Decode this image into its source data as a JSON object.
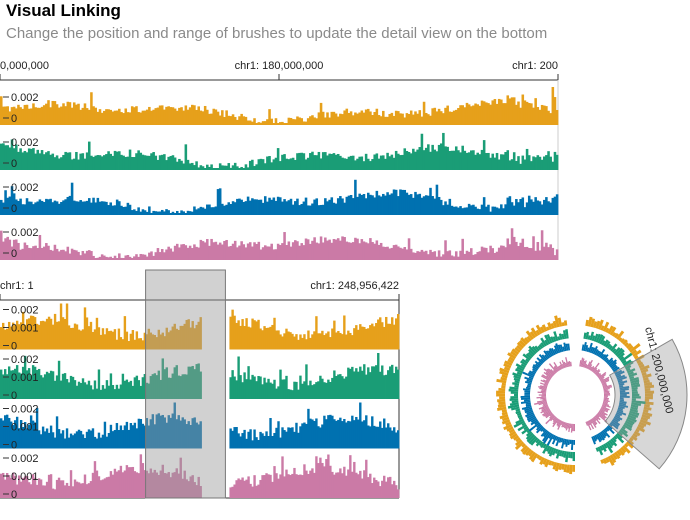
{
  "header": {
    "title": "Visual Linking",
    "subtitle": "Change the position and range of brushes to update the detail view on the bottom"
  },
  "chart_data": [
    {
      "type": "area",
      "name": "detail-view",
      "x_ticks": [
        "0,000,000",
        "chr1: 180,000,000",
        "chr1: 200"
      ],
      "series": [
        {
          "color": "#E6A01B",
          "y_ticks": [
            "0.002",
            "0"
          ]
        },
        {
          "color": "#1A9D76",
          "y_ticks": [
            "0.002",
            "0"
          ]
        },
        {
          "color": "#0071B0",
          "y_ticks": [
            "0.002",
            "0"
          ]
        },
        {
          "color": "#CB7AA6",
          "y_ticks": [
            "0.002",
            "0"
          ]
        }
      ]
    },
    {
      "type": "area",
      "name": "overview",
      "x_ticks": [
        "chr1: 1",
        "chr1: 248,956,422"
      ],
      "series": [
        {
          "color": "#E6A01B",
          "y_ticks": [
            "0.002",
            "0.001",
            "0"
          ]
        },
        {
          "color": "#1A9D76",
          "y_ticks": [
            "0.002",
            "0.001",
            "0"
          ]
        },
        {
          "color": "#0071B0",
          "y_ticks": [
            "0.002",
            "0.001",
            "0"
          ]
        },
        {
          "color": "#CB7AA6",
          "y_ticks": [
            "0.002",
            "0.001",
            "0"
          ]
        }
      ],
      "brush_range": [
        0.365,
        0.565
      ],
      "gap_range": [
        0.5,
        0.575
      ]
    },
    {
      "type": "circular-area",
      "name": "circular-overview",
      "series_colors": [
        "#E6A01B",
        "#1A9D76",
        "#0071B0",
        "#CB7AA6"
      ],
      "brush_label": "chr1: 200,000,000"
    }
  ]
}
